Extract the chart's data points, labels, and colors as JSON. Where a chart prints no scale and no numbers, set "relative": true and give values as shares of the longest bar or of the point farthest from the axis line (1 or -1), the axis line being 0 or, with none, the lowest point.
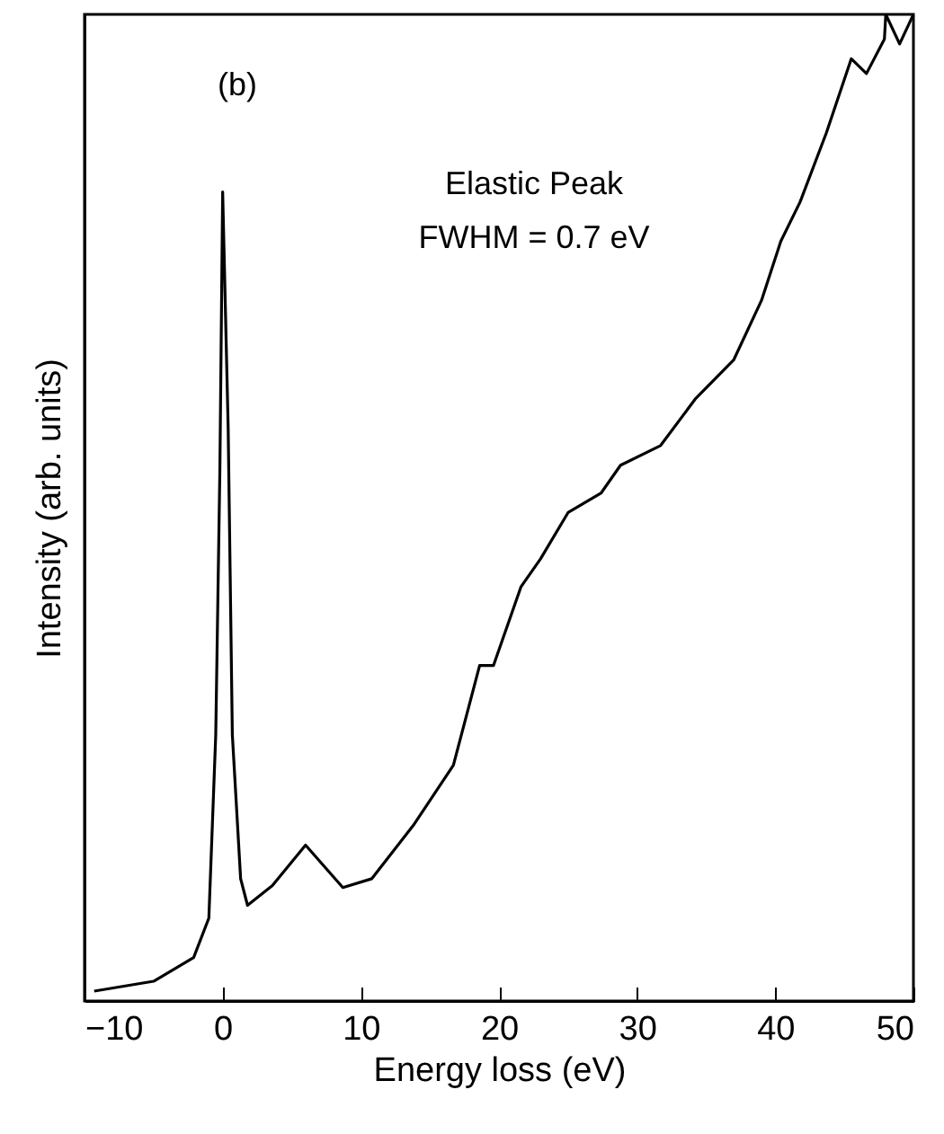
{
  "chart_data": {
    "type": "line",
    "xlabel": "Energy loss (eV)",
    "ylabel": "Intensity (arb. units)",
    "relative": true,
    "xlim": [
      -10,
      50
    ],
    "xticks": [
      -10,
      0,
      10,
      20,
      30,
      40,
      50
    ],
    "annotations": [
      "(b)",
      "Elastic Peak",
      "FWHM = 0.7 eV"
    ],
    "series": [
      {
        "color": "#000000",
        "x": [
          -9.3,
          -5,
          -2.1,
          -1,
          -0.5,
          -0.2,
          0,
          0.4,
          0.7,
          1.3,
          1.8,
          3.6,
          6.0,
          8.7,
          10.8,
          13.8,
          16.7,
          18.6,
          19.6,
          21.6,
          23.0,
          25.0,
          27.4,
          28.8,
          31.7,
          34.2,
          37.0,
          39.0,
          40.4,
          41.8,
          43.7,
          45.5,
          46.6,
          47.9,
          48.0,
          49.0,
          50.0
        ],
        "values": [
          0.01,
          0.02,
          0.044,
          0.084,
          0.27,
          0.54,
          0.82,
          0.58,
          0.27,
          0.124,
          0.097,
          0.117,
          0.158,
          0.115,
          0.124,
          0.178,
          0.239,
          0.34,
          0.34,
          0.42,
          0.448,
          0.495,
          0.515,
          0.543,
          0.563,
          0.61,
          0.65,
          0.71,
          0.77,
          0.81,
          0.88,
          0.955,
          0.94,
          0.975,
          1.0,
          0.97,
          1.0
        ]
      }
    ]
  }
}
